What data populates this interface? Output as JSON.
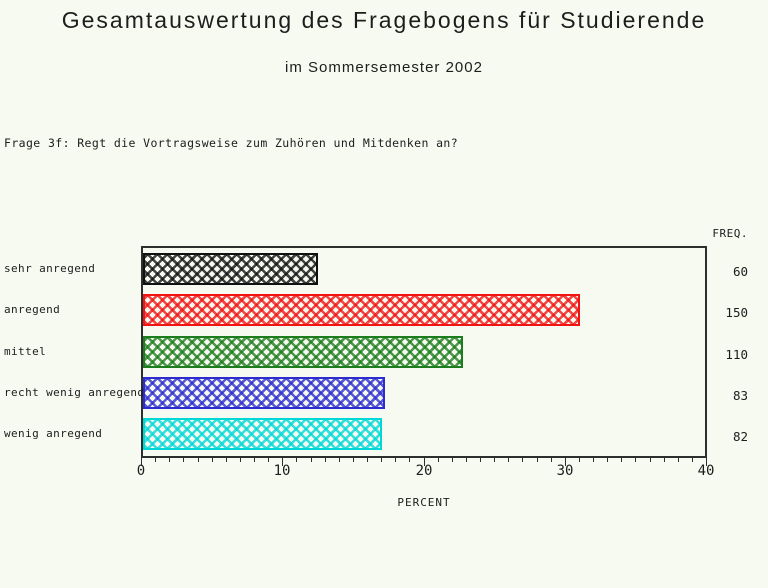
{
  "question": "Frage 3f: Regt die Vortragsweise zum Zuhören und Mitdenken an?",
  "colors": {
    "background": "#f6faf1",
    "frame": "#2e2e2e",
    "text": "#1d1d1d"
  },
  "chart_data": {
    "type": "bar",
    "orientation": "horizontal",
    "title": "Gesamtauswertung des Fragebogens für Studierende",
    "subtitle": "im Sommersemester 2002",
    "categories": [
      "sehr anregend",
      "anregend",
      "mittel",
      "recht wenig anregend",
      "wenig anregend"
    ],
    "series": [
      {
        "name": "PERCENT",
        "values": [
          12.37,
          30.93,
          22.68,
          17.11,
          16.91
        ]
      },
      {
        "name": "FREQ.",
        "values": [
          60,
          150,
          110,
          83,
          82
        ]
      }
    ],
    "xlabel": "PERCENT",
    "freq_label": "FREQ.",
    "xlim": [
      0,
      40
    ],
    "x_major_ticks": [
      0,
      10,
      20,
      30,
      40
    ],
    "x_minor_step": 1,
    "grid": false,
    "legend": "none",
    "bar_pattern": "crosshatch",
    "bar_colors": [
      "#111111",
      "#f21313",
      "#1c7d1c",
      "#2d2dcf",
      "#00d8d8"
    ]
  }
}
